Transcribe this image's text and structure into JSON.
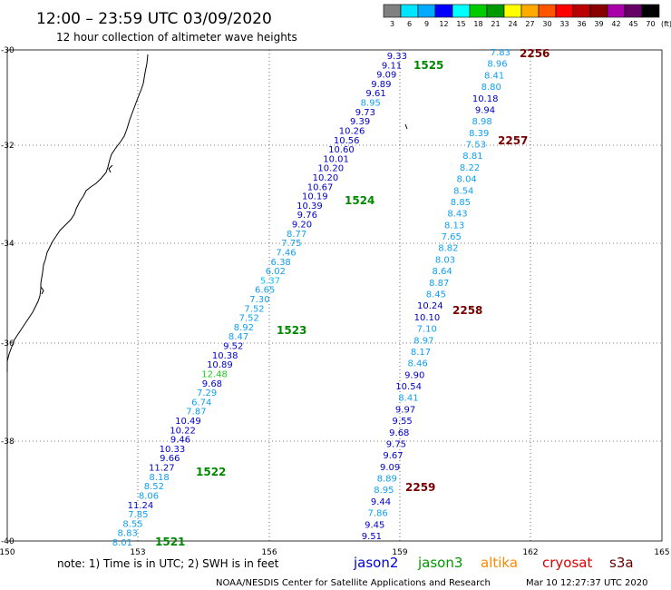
{
  "header": {
    "title": "12:00 – 23:59 UTC 03/09/2020",
    "subtitle": "12 hour collection of altimeter wave heights"
  },
  "legend": {
    "values": [
      "3",
      "6",
      "9",
      "12",
      "15",
      "18",
      "21",
      "24",
      "27",
      "30",
      "33",
      "36",
      "39",
      "42",
      "45",
      "70"
    ],
    "unit": "(ft)",
    "colors": [
      "#808080",
      "#00e5ff",
      "#00aaff",
      "#0000ff",
      "#00ffff",
      "#00cc00",
      "#009900",
      "#ffff00",
      "#ffaa00",
      "#ff5500",
      "#ff0000",
      "#bb0000",
      "#880000",
      "#aa00aa",
      "#660066",
      "#000000"
    ]
  },
  "axes": {
    "lon_labels": [
      "150",
      "153",
      "156",
      "159",
      "162",
      "165"
    ],
    "lat_labels": [
      "-30",
      "-32",
      "-34",
      "-36",
      "-38",
      "-40"
    ]
  },
  "passes": [
    {
      "time": "1521",
      "color": "#008800"
    },
    {
      "time": "1522",
      "color": "#008800"
    },
    {
      "time": "1523",
      "color": "#008800"
    },
    {
      "time": "1524",
      "color": "#008800"
    },
    {
      "time": "1525",
      "color": "#008800"
    },
    {
      "time": "2256",
      "color": "#770000"
    },
    {
      "time": "2257",
      "color": "#770000"
    },
    {
      "time": "2258",
      "color": "#770000"
    },
    {
      "time": "2259",
      "color": "#770000"
    }
  ],
  "track1_values": [
    "9.33",
    "9.11",
    "9.09",
    "9.89",
    "9.61",
    "8.95",
    "9.73",
    "9.39",
    "10.26",
    "10.56",
    "10.60",
    "10.01",
    "10.20",
    "10.20",
    "10.67",
    "10.19",
    "10.39",
    "9.76",
    "9.20",
    "8.77",
    "7.75",
    "7.46",
    "6.38",
    "6.02",
    "5.37",
    "6.65",
    "7.30",
    "7.52",
    "7.52",
    "8.92",
    "8.47",
    "9.52",
    "10.38",
    "10.89",
    "12.48",
    "9.68",
    "7.29",
    "6.74",
    "7.87",
    "10.49",
    "10.22",
    "9.46",
    "10.33",
    "9.66",
    "11.27",
    "8.18",
    "8.52",
    "8.06",
    "11.24",
    "7.85",
    "8.55",
    "8.83",
    "8.01"
  ],
  "track2_values": [
    "7.83",
    "8.96",
    "8.41",
    "8.80",
    "10.18",
    "9.94",
    "8.98",
    "8.39",
    "7.53",
    "8.81",
    "8.22",
    "8.04",
    "8.54",
    "8.85",
    "8.43",
    "8.13",
    "7.65",
    "8.82",
    "8.03",
    "8.64",
    "8.87",
    "8.45",
    "10.24",
    "10.10",
    "7.10",
    "8.97",
    "8.17",
    "8.46",
    "9.90",
    "10.54",
    "8.41",
    "9.97",
    "9.55",
    "9.68",
    "9.75",
    "9.67",
    "9.09",
    "8.89",
    "8.95",
    "9.44",
    "7.86",
    "9.45",
    "9.51"
  ],
  "footer": {
    "note": "note:  1) Time is in UTC;  2) SWH is in feet",
    "satellites": [
      {
        "name": "jason2",
        "color": "#0000dd"
      },
      {
        "name": "jason3",
        "color": "#009900"
      },
      {
        "name": "altika",
        "color": "#ff8800"
      },
      {
        "name": "cryosat",
        "color": "#dd0000"
      },
      {
        "name": "s3a",
        "color": "#660000"
      }
    ],
    "credit": "NOAA/NESDIS Center for Satellite Applications and Research",
    "timestamp": "Mar 10 12:27:37 UTC 2020"
  }
}
